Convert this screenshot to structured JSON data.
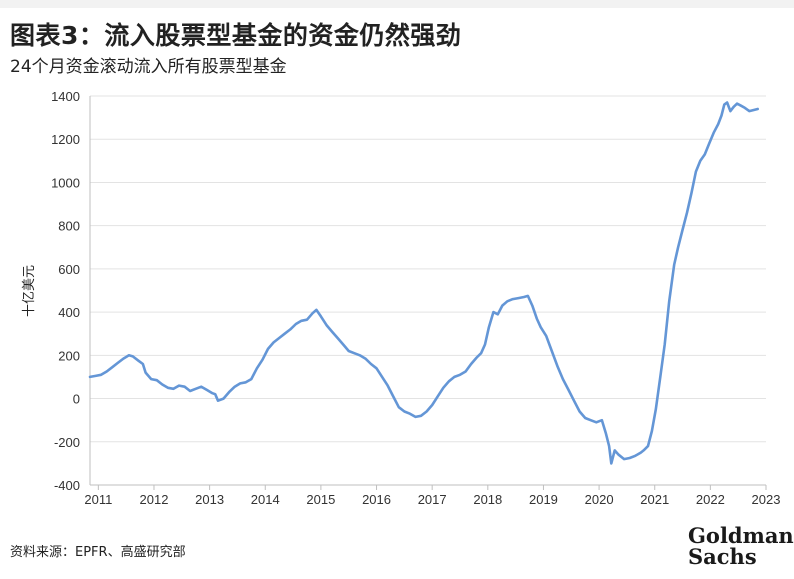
{
  "header": {
    "title": "图表3：流入股票型基金的资金仍然强劲",
    "subtitle": "24个月资金滚动流入所有股票型基金"
  },
  "footer": {
    "source": "资料来源：EPFR、高盛研究部",
    "logo_line1": "Goldman",
    "logo_line2": "Sachs"
  },
  "colors": {
    "line": "#6496d6",
    "grid": "#e3e3e3",
    "axis": "#bfbfbf"
  },
  "chart_data": {
    "type": "line",
    "title": "图表3：流入股票型基金的资金仍然强劲",
    "subtitle": "24个月资金滚动流入所有股票型基金",
    "xlabel": "",
    "ylabel": "十亿美元",
    "ylim": [
      -400,
      1400
    ],
    "yticks": [
      1400,
      1200,
      1000,
      800,
      600,
      400,
      200,
      0,
      -200,
      -400
    ],
    "xlim": [
      2010.85,
      2023.0
    ],
    "xticks": [
      "2011",
      "2012",
      "2013",
      "2014",
      "2015",
      "2016",
      "2017",
      "2018",
      "2019",
      "2020",
      "2021",
      "2022",
      "2023"
    ],
    "grid": true,
    "series": [
      {
        "name": "",
        "color": "#6496d6",
        "points": [
          [
            2010.85,
            100
          ],
          [
            2010.95,
            105
          ],
          [
            2011.05,
            110
          ],
          [
            2011.15,
            125
          ],
          [
            2011.25,
            145
          ],
          [
            2011.35,
            165
          ],
          [
            2011.45,
            185
          ],
          [
            2011.55,
            200
          ],
          [
            2011.62,
            195
          ],
          [
            2011.72,
            175
          ],
          [
            2011.8,
            160
          ],
          [
            2011.85,
            120
          ],
          [
            2011.95,
            90
          ],
          [
            2012.05,
            85
          ],
          [
            2012.15,
            65
          ],
          [
            2012.25,
            50
          ],
          [
            2012.35,
            45
          ],
          [
            2012.45,
            60
          ],
          [
            2012.55,
            55
          ],
          [
            2012.65,
            35
          ],
          [
            2012.75,
            45
          ],
          [
            2012.85,
            55
          ],
          [
            2012.95,
            40
          ],
          [
            2013.05,
            25
          ],
          [
            2013.1,
            20
          ],
          [
            2013.15,
            -10
          ],
          [
            2013.25,
            0
          ],
          [
            2013.35,
            30
          ],
          [
            2013.45,
            55
          ],
          [
            2013.55,
            70
          ],
          [
            2013.65,
            75
          ],
          [
            2013.75,
            90
          ],
          [
            2013.85,
            140
          ],
          [
            2013.95,
            180
          ],
          [
            2014.05,
            230
          ],
          [
            2014.15,
            260
          ],
          [
            2014.25,
            280
          ],
          [
            2014.35,
            300
          ],
          [
            2014.45,
            320
          ],
          [
            2014.55,
            345
          ],
          [
            2014.65,
            360
          ],
          [
            2014.75,
            365
          ],
          [
            2014.85,
            395
          ],
          [
            2014.92,
            410
          ],
          [
            2015.0,
            380
          ],
          [
            2015.1,
            340
          ],
          [
            2015.2,
            310
          ],
          [
            2015.3,
            280
          ],
          [
            2015.4,
            250
          ],
          [
            2015.5,
            220
          ],
          [
            2015.6,
            210
          ],
          [
            2015.7,
            200
          ],
          [
            2015.8,
            185
          ],
          [
            2015.9,
            160
          ],
          [
            2016.0,
            140
          ],
          [
            2016.1,
            100
          ],
          [
            2016.2,
            60
          ],
          [
            2016.3,
            10
          ],
          [
            2016.4,
            -40
          ],
          [
            2016.5,
            -60
          ],
          [
            2016.6,
            -70
          ],
          [
            2016.7,
            -85
          ],
          [
            2016.8,
            -80
          ],
          [
            2016.9,
            -60
          ],
          [
            2017.0,
            -30
          ],
          [
            2017.1,
            10
          ],
          [
            2017.2,
            50
          ],
          [
            2017.3,
            80
          ],
          [
            2017.4,
            100
          ],
          [
            2017.5,
            110
          ],
          [
            2017.6,
            125
          ],
          [
            2017.7,
            160
          ],
          [
            2017.8,
            190
          ],
          [
            2017.88,
            210
          ],
          [
            2017.95,
            250
          ],
          [
            2018.02,
            330
          ],
          [
            2018.1,
            400
          ],
          [
            2018.18,
            390
          ],
          [
            2018.26,
            430
          ],
          [
            2018.35,
            450
          ],
          [
            2018.45,
            460
          ],
          [
            2018.55,
            465
          ],
          [
            2018.65,
            470
          ],
          [
            2018.72,
            475
          ],
          [
            2018.8,
            430
          ],
          [
            2018.88,
            370
          ],
          [
            2018.95,
            330
          ],
          [
            2019.05,
            290
          ],
          [
            2019.15,
            220
          ],
          [
            2019.25,
            150
          ],
          [
            2019.35,
            90
          ],
          [
            2019.45,
            40
          ],
          [
            2019.55,
            -10
          ],
          [
            2019.65,
            -60
          ],
          [
            2019.75,
            -90
          ],
          [
            2019.85,
            -100
          ],
          [
            2019.95,
            -110
          ],
          [
            2020.05,
            -100
          ],
          [
            2020.12,
            -160
          ],
          [
            2020.18,
            -220
          ],
          [
            2020.22,
            -300
          ],
          [
            2020.28,
            -240
          ],
          [
            2020.35,
            -260
          ],
          [
            2020.45,
            -280
          ],
          [
            2020.55,
            -275
          ],
          [
            2020.65,
            -265
          ],
          [
            2020.75,
            -250
          ],
          [
            2020.8,
            -240
          ],
          [
            2020.88,
            -220
          ],
          [
            2020.95,
            -150
          ],
          [
            2021.02,
            -50
          ],
          [
            2021.1,
            100
          ],
          [
            2021.18,
            250
          ],
          [
            2021.26,
            450
          ],
          [
            2021.35,
            620
          ],
          [
            2021.42,
            700
          ],
          [
            2021.5,
            780
          ],
          [
            2021.58,
            860
          ],
          [
            2021.66,
            950
          ],
          [
            2021.74,
            1050
          ],
          [
            2021.82,
            1100
          ],
          [
            2021.9,
            1130
          ],
          [
            2021.98,
            1180
          ],
          [
            2022.06,
            1230
          ],
          [
            2022.14,
            1270
          ],
          [
            2022.2,
            1310
          ],
          [
            2022.25,
            1360
          ],
          [
            2022.3,
            1370
          ],
          [
            2022.36,
            1330
          ],
          [
            2022.42,
            1350
          ],
          [
            2022.48,
            1365
          ],
          [
            2022.55,
            1355
          ],
          [
            2022.62,
            1345
          ],
          [
            2022.7,
            1330
          ],
          [
            2022.78,
            1335
          ],
          [
            2022.85,
            1340
          ]
        ]
      }
    ]
  }
}
